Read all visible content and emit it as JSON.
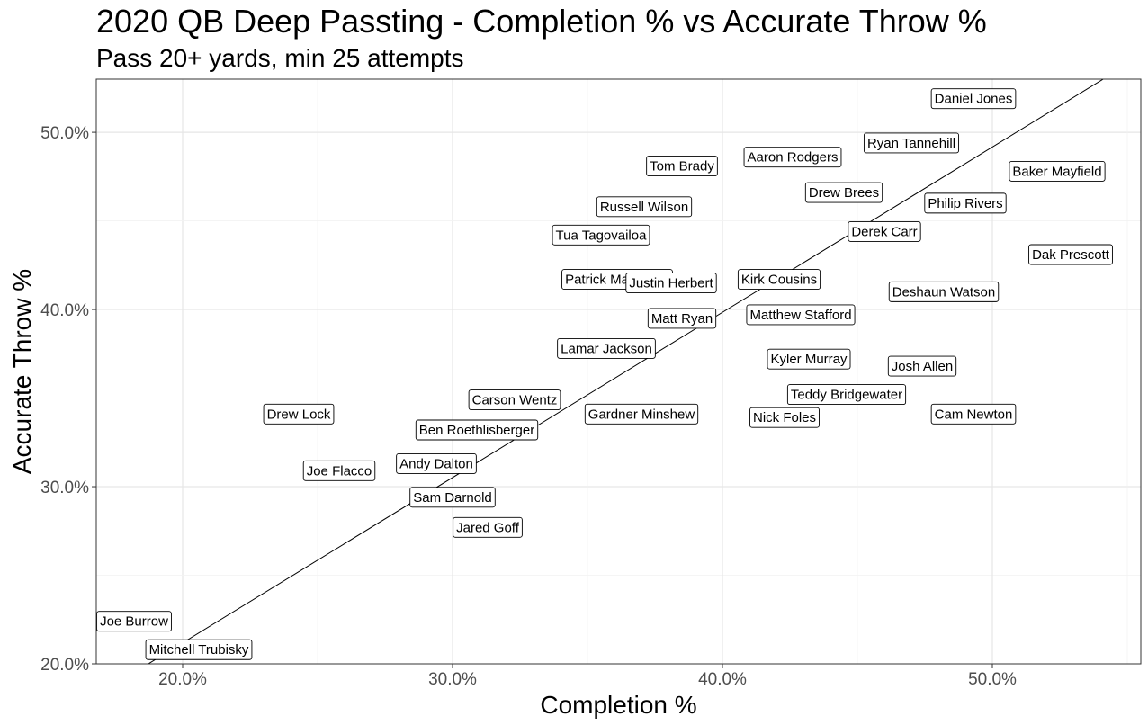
{
  "chart_data": {
    "type": "scatter",
    "title": "2020 QB Deep Passting - Completion % vs Accurate Throw %",
    "subtitle": "Pass 20+ yards, min 25 attempts",
    "xlabel": "Completion %",
    "ylabel": "Accurate Throw %",
    "xlim": [
      16.8,
      55.5
    ],
    "ylim": [
      20.0,
      53.0
    ],
    "xticks": [
      20,
      30,
      40,
      50
    ],
    "yticks": [
      20,
      30,
      40,
      50
    ],
    "xtick_labels": [
      "20.0%",
      "30.0%",
      "40.0%",
      "50.0%"
    ],
    "ytick_labels": [
      "20.0%",
      "30.0%",
      "40.0%",
      "50.0%"
    ],
    "grid": true,
    "fit_line": {
      "x": [
        16.8,
        55.5
      ],
      "y": [
        18.2,
        54.3
      ]
    },
    "points": [
      {
        "label": "Daniel Jones",
        "x": 49.3,
        "y": 51.9
      },
      {
        "label": "Ryan Tannehill",
        "x": 47.0,
        "y": 49.4
      },
      {
        "label": "Aaron Rodgers",
        "x": 42.6,
        "y": 48.6
      },
      {
        "label": "Tom Brady",
        "x": 38.5,
        "y": 48.1
      },
      {
        "label": "Baker Mayfield",
        "x": 52.4,
        "y": 47.8
      },
      {
        "label": "Drew Brees",
        "x": 44.5,
        "y": 46.6
      },
      {
        "label": "Philip Rivers",
        "x": 49.0,
        "y": 46.0
      },
      {
        "label": "Russell Wilson",
        "x": 37.1,
        "y": 45.8
      },
      {
        "label": "Derek Carr",
        "x": 46.0,
        "y": 44.4
      },
      {
        "label": "Tua Tagovailoa",
        "x": 35.5,
        "y": 44.2
      },
      {
        "label": "Dak Prescott",
        "x": 52.9,
        "y": 43.1
      },
      {
        "label": "Patrick Mahomes",
        "x": 36.1,
        "y": 41.7
      },
      {
        "label": "Kirk Cousins",
        "x": 42.1,
        "y": 41.7
      },
      {
        "label": "Justin Herbert",
        "x": 38.1,
        "y": 41.5
      },
      {
        "label": "Deshaun Watson",
        "x": 48.2,
        "y": 41.0
      },
      {
        "label": "Matthew Stafford",
        "x": 42.9,
        "y": 39.7
      },
      {
        "label": "Matt Ryan",
        "x": 38.5,
        "y": 39.5
      },
      {
        "label": "Lamar Jackson",
        "x": 35.7,
        "y": 37.8
      },
      {
        "label": "Kyler Murray",
        "x": 43.2,
        "y": 37.2
      },
      {
        "label": "Josh Allen",
        "x": 47.4,
        "y": 36.8
      },
      {
        "label": "Teddy Bridgewater",
        "x": 44.6,
        "y": 35.2
      },
      {
        "label": "Carson Wentz",
        "x": 32.3,
        "y": 34.9
      },
      {
        "label": "Drew Lock",
        "x": 24.3,
        "y": 34.1
      },
      {
        "label": "Gardner Minshew",
        "x": 37.0,
        "y": 34.1
      },
      {
        "label": "Cam Newton",
        "x": 49.3,
        "y": 34.1
      },
      {
        "label": "Nick Foles",
        "x": 42.3,
        "y": 33.9
      },
      {
        "label": "Ben Roethlisberger",
        "x": 30.9,
        "y": 33.2
      },
      {
        "label": "Andy Dalton",
        "x": 29.4,
        "y": 31.3
      },
      {
        "label": "Joe Flacco",
        "x": 25.8,
        "y": 30.9
      },
      {
        "label": "Sam Darnold",
        "x": 30.0,
        "y": 29.4
      },
      {
        "label": "Jared Goff",
        "x": 31.3,
        "y": 27.7
      },
      {
        "label": "Joe Burrow",
        "x": 18.2,
        "y": 22.4
      },
      {
        "label": "Mitchell Trubisky",
        "x": 20.6,
        "y": 20.8
      }
    ]
  }
}
